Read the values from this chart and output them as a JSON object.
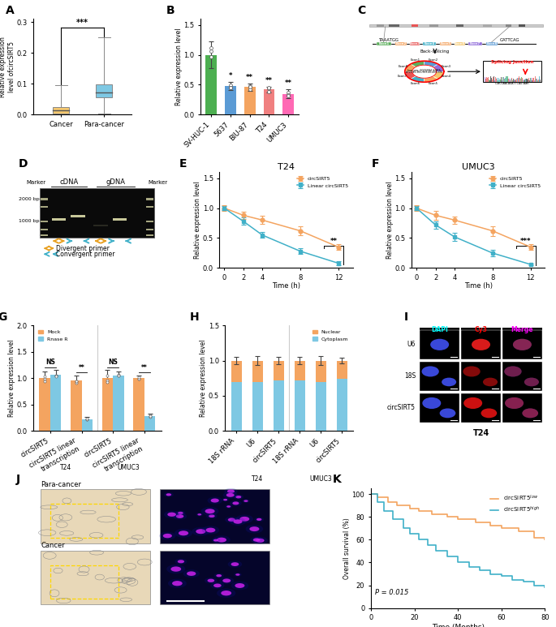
{
  "panel_A": {
    "cancer_whisker_low": 0.0,
    "cancer_q1": 0.005,
    "cancer_median": 0.015,
    "cancer_q3": 0.025,
    "cancer_whisker_high": 0.095,
    "para_whisker_low": 0.005,
    "para_q1": 0.055,
    "para_median": 0.072,
    "para_q3": 0.098,
    "para_whisker_high": 0.25,
    "cancer_color": "#F5C86E",
    "para_color": "#7EC8E3",
    "ylabel": "Relative expression\nlevel ofcircSIRT5",
    "ylim": [
      0,
      0.31
    ],
    "yticks": [
      0.0,
      0.1,
      0.2,
      0.3
    ],
    "sig": "***"
  },
  "panel_B": {
    "categories": [
      "SV-HUC-1",
      "5637",
      "BIU-87",
      "T24",
      "UMUC3"
    ],
    "values": [
      1.0,
      0.48,
      0.46,
      0.42,
      0.35
    ],
    "errors": [
      0.22,
      0.07,
      0.06,
      0.05,
      0.07
    ],
    "colors": [
      "#4CAF50",
      "#5B9BD5",
      "#F4A460",
      "#F08080",
      "#FF69B4"
    ],
    "ylabel": "Relative expression level",
    "ylim": [
      0,
      1.6
    ],
    "yticks": [
      0.0,
      0.5,
      1.0,
      1.5
    ],
    "sig_labels": [
      "",
      "*",
      "**",
      "**",
      "**"
    ]
  },
  "panel_E": {
    "timepoints": [
      0,
      2,
      4,
      8,
      12
    ],
    "circSIRT5": [
      1.0,
      0.88,
      0.8,
      0.62,
      0.35
    ],
    "linear": [
      1.0,
      0.78,
      0.55,
      0.28,
      0.08
    ],
    "circSIRT5_err": [
      0.05,
      0.06,
      0.07,
      0.07,
      0.05
    ],
    "linear_err": [
      0.04,
      0.06,
      0.05,
      0.05,
      0.03
    ],
    "circ_color": "#F4A460",
    "linear_color": "#40B0C8",
    "title": "T24",
    "ylabel": "Relative expression level",
    "xlabel": "Time (h)",
    "ylim": [
      0,
      1.6
    ],
    "yticks": [
      0.0,
      0.5,
      1.0,
      1.5
    ],
    "sig": "**"
  },
  "panel_F": {
    "timepoints": [
      0,
      2,
      4,
      8,
      12
    ],
    "circSIRT5": [
      1.0,
      0.88,
      0.8,
      0.62,
      0.35
    ],
    "linear": [
      1.0,
      0.72,
      0.52,
      0.25,
      0.06
    ],
    "circSIRT5_err": [
      0.05,
      0.07,
      0.06,
      0.08,
      0.05
    ],
    "linear_err": [
      0.04,
      0.06,
      0.07,
      0.05,
      0.02
    ],
    "circ_color": "#F4A460",
    "linear_color": "#40B0C8",
    "title": "UMUC3",
    "ylabel": "Relative expression level",
    "xlabel": "Time (h)",
    "ylim": [
      0,
      1.6
    ],
    "yticks": [
      0.0,
      0.5,
      1.0,
      1.5
    ],
    "sig": "***"
  },
  "panel_G": {
    "mock_values": [
      1.0,
      0.95,
      1.0,
      1.0
    ],
    "rnaseR_values": [
      1.07,
      0.22,
      1.05,
      0.28
    ],
    "mock_errors": [
      0.12,
      0.1,
      0.15,
      0.05
    ],
    "rnaseR_errors": [
      0.08,
      0.04,
      0.08,
      0.04
    ],
    "mock_color": "#F4A460",
    "rnaseR_color": "#7EC8E3",
    "ylabel": "Relative expression level",
    "sig_labels": [
      "NS",
      "**",
      "NS",
      "**"
    ]
  },
  "panel_H": {
    "categories": [
      "18S rRNA",
      "U6",
      "circSIRT5",
      "18S rRNA",
      "U6",
      "circSIRT5"
    ],
    "nuclear_values": [
      0.3,
      0.3,
      0.28,
      0.28,
      0.3,
      0.26
    ],
    "cytoplasm_values": [
      0.7,
      0.7,
      0.72,
      0.72,
      0.7,
      0.74
    ],
    "nuc_err": [
      0.05,
      0.06,
      0.05,
      0.05,
      0.06,
      0.04
    ],
    "nuclear_color": "#F4A460",
    "cytoplasm_color": "#7EC8E3",
    "ylabel": "Relative expression level"
  },
  "panel_K": {
    "time_low": [
      0,
      3,
      8,
      12,
      18,
      22,
      28,
      35,
      40,
      48,
      55,
      60,
      68,
      75,
      80
    ],
    "surv_low": [
      1.0,
      0.97,
      0.93,
      0.9,
      0.87,
      0.85,
      0.82,
      0.8,
      0.78,
      0.75,
      0.72,
      0.7,
      0.67,
      0.62,
      0.6
    ],
    "time_high": [
      0,
      3,
      6,
      10,
      15,
      18,
      22,
      26,
      30,
      35,
      40,
      45,
      50,
      55,
      60,
      65,
      70,
      75,
      80
    ],
    "surv_high": [
      1.0,
      0.93,
      0.85,
      0.78,
      0.7,
      0.65,
      0.6,
      0.55,
      0.5,
      0.45,
      0.4,
      0.36,
      0.33,
      0.3,
      0.28,
      0.25,
      0.23,
      0.2,
      0.18
    ],
    "low_color": "#F4A460",
    "high_color": "#40B0C8",
    "xlabel": "Time (Months)",
    "ylabel": "Overall survival (%)",
    "pvalue": "P = 0.015"
  }
}
